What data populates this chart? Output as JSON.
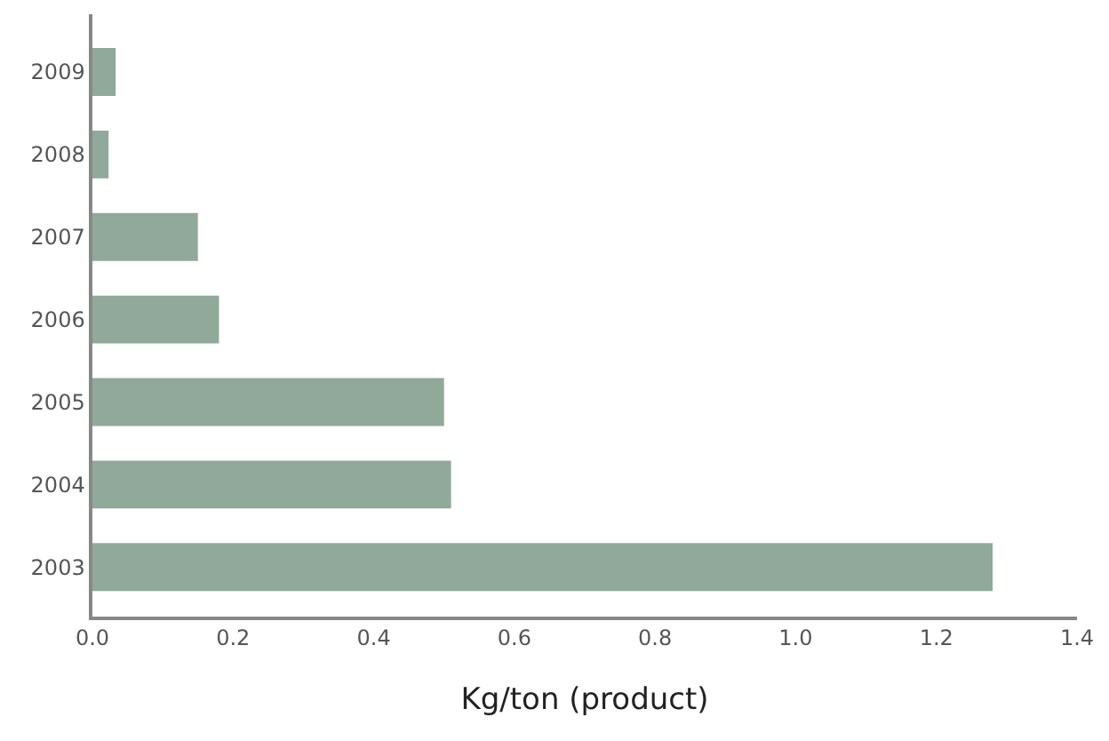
{
  "chart_data": {
    "type": "bar",
    "orientation": "horizontal",
    "xlabel": "Kg/ton (product)",
    "categories": [
      "2009",
      "2008",
      "2007",
      "2006",
      "2005",
      "2004",
      "2003"
    ],
    "values": [
      0.033,
      0.023,
      0.15,
      0.18,
      0.5,
      0.51,
      1.28
    ],
    "color": "#91a99a",
    "xlim": [
      0,
      1.4
    ],
    "xticks": [
      {
        "value": 0,
        "label": "0.0"
      },
      0.2,
      0.4,
      0.6,
      0.8,
      {
        "value": 1,
        "label": "1.0"
      },
      1.2,
      1.4
    ]
  }
}
